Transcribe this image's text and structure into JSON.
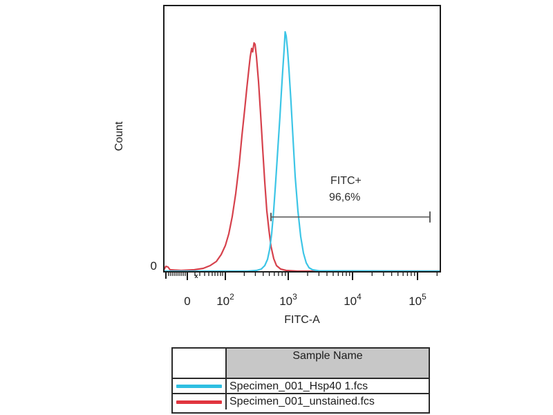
{
  "figure": {
    "y_axis_label": "Count",
    "y_zero_label": "0",
    "x_axis_label": "FITC-A"
  },
  "chart_data": {
    "type": "line",
    "subtype": "flow-cytometry-histogram-overlay",
    "title": "",
    "xlabel": "FITC-A",
    "ylabel": "Count",
    "x_axis": {
      "scale": "logicle",
      "ticks": [
        {
          "base": "0",
          "exp": "",
          "frac": 0.085
        },
        {
          "base": "10",
          "exp": "2",
          "frac": 0.2225
        },
        {
          "base": "10",
          "exp": "3",
          "frac": 0.45
        },
        {
          "base": "10",
          "exp": "4",
          "frac": 0.6825
        },
        {
          "base": "10",
          "exp": "5",
          "frac": 0.9175
        }
      ],
      "edge_tick_frac": 0.0075,
      "left_minor_fracs": [
        0.0175,
        0.025,
        0.0325,
        0.04,
        0.0475,
        0.055,
        0.0625,
        0.07,
        0.0775,
        0.1125,
        0.13,
        0.1475,
        0.1625,
        0.175,
        0.185,
        0.195,
        0.205,
        0.2125
      ],
      "offscale_marker_frac": 0.1175
    },
    "y_axis": {
      "scale": "linear",
      "tick_labels": [
        "0"
      ],
      "gridlines": false
    },
    "series": [
      {
        "name": "Specimen_001_Hsp40 1.fcs",
        "color": "#3cc5e6",
        "draw_order": 2,
        "peak_x_value": 870,
        "peak_height_frac": 0.9,
        "points": [
          [
            0,
            0.9974
          ],
          [
            0.3025,
            0.9974
          ],
          [
            0.335,
            0.9948
          ],
          [
            0.3525,
            0.9896
          ],
          [
            0.365,
            0.9766
          ],
          [
            0.375,
            0.9532
          ],
          [
            0.3825,
            0.917
          ],
          [
            0.39,
            0.8571
          ],
          [
            0.3975,
            0.7662
          ],
          [
            0.405,
            0.6545
          ],
          [
            0.4125,
            0.5351
          ],
          [
            0.42,
            0.4156
          ],
          [
            0.425,
            0.3273
          ],
          [
            0.43,
            0.2442
          ],
          [
            0.435,
            0.1662
          ],
          [
            0.4388,
            0.0987
          ],
          [
            0.4425,
            0.1143
          ],
          [
            0.4475,
            0.1662
          ],
          [
            0.4525,
            0.239
          ],
          [
            0.46,
            0.3636
          ],
          [
            0.4675,
            0.5039
          ],
          [
            0.475,
            0.6416
          ],
          [
            0.485,
            0.7714
          ],
          [
            0.495,
            0.8675
          ],
          [
            0.505,
            0.9299
          ],
          [
            0.515,
            0.9662
          ],
          [
            0.525,
            0.9844
          ],
          [
            0.5375,
            0.9922
          ],
          [
            0.56,
            0.9961
          ],
          [
            1,
            0.9974
          ]
        ]
      },
      {
        "name": "Specimen_001_unstained.fcs",
        "color": "#d6414c",
        "draw_order": 1,
        "peak_x_value": 290,
        "peak_height_frac": 0.86,
        "points": [
          [
            0,
            0.9922
          ],
          [
            0.0075,
            0.9792
          ],
          [
            0.015,
            0.9818
          ],
          [
            0.0225,
            0.9922
          ],
          [
            0.0625,
            0.9948
          ],
          [
            0.11,
            0.9922
          ],
          [
            0.1425,
            0.987
          ],
          [
            0.1675,
            0.9766
          ],
          [
            0.19,
            0.961
          ],
          [
            0.2075,
            0.9351
          ],
          [
            0.2225,
            0.9013
          ],
          [
            0.235,
            0.8571
          ],
          [
            0.2475,
            0.7922
          ],
          [
            0.26,
            0.7065
          ],
          [
            0.2725,
            0.5974
          ],
          [
            0.2825,
            0.4883
          ],
          [
            0.2925,
            0.3896
          ],
          [
            0.3,
            0.3117
          ],
          [
            0.3075,
            0.239
          ],
          [
            0.3125,
            0.1922
          ],
          [
            0.3175,
            0.161
          ],
          [
            0.3213,
            0.174
          ],
          [
            0.3263,
            0.1403
          ],
          [
            0.33,
            0.1455
          ],
          [
            0.335,
            0.1922
          ],
          [
            0.3425,
            0.2857
          ],
          [
            0.35,
            0.4078
          ],
          [
            0.3575,
            0.5377
          ],
          [
            0.365,
            0.6623
          ],
          [
            0.3725,
            0.7714
          ],
          [
            0.38,
            0.8416
          ],
          [
            0.3875,
            0.9039
          ],
          [
            0.3975,
            0.9506
          ],
          [
            0.4075,
            0.9766
          ],
          [
            0.4225,
            0.9896
          ],
          [
            0.4425,
            0.9948
          ],
          [
            0.4825,
            0.9974
          ],
          [
            1,
            0.9974
          ]
        ]
      }
    ],
    "gate": {
      "label": "FITC+",
      "percentage": "96,6%",
      "x_start_frac": 0.3875,
      "x_end_frac": 0.9625,
      "y_frac": 0.794,
      "color": "#5c5c5c"
    }
  },
  "legend": {
    "header": "Sample Name",
    "rows": [
      {
        "name": "Specimen_001_Hsp40 1.fcs",
        "color": "#2ebfe2"
      },
      {
        "name": "Specimen_001_unstained.fcs",
        "color": "#e1353f"
      }
    ]
  }
}
